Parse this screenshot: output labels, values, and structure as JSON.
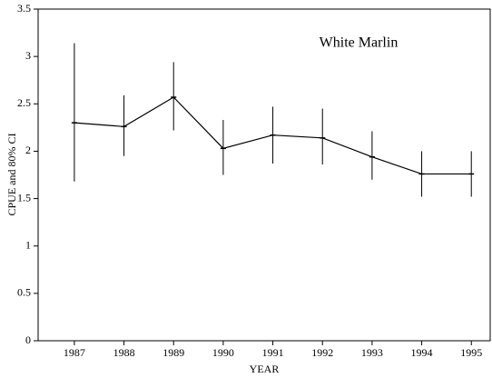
{
  "chart_data": {
    "type": "line",
    "annotation": "White Marlin",
    "xlabel": "YEAR",
    "ylabel": "CPUE and 80% CI",
    "x": [
      1987,
      1988,
      1989,
      1990,
      1991,
      1992,
      1993,
      1994,
      1995
    ],
    "series": [
      {
        "color": "#000000",
        "values": [
          2.3,
          2.26,
          2.57,
          2.03,
          2.17,
          2.14,
          1.94,
          1.76,
          1.76
        ],
        "ci_low": [
          1.68,
          1.95,
          2.22,
          1.75,
          1.87,
          1.86,
          1.7,
          1.52,
          1.52
        ],
        "ci_high": [
          3.14,
          2.59,
          2.94,
          2.33,
          2.47,
          2.45,
          2.21,
          2.0,
          2.0
        ]
      }
    ],
    "xlim": [
      1986.27,
      1995.38
    ],
    "xticks": [
      1987,
      1988,
      1989,
      1990,
      1991,
      1992,
      1993,
      1994,
      1995
    ],
    "ylim": [
      0,
      3.5
    ],
    "yticks": [
      0,
      0.5,
      1,
      1.5,
      2,
      2.5,
      3,
      3.5
    ],
    "grid": false
  }
}
